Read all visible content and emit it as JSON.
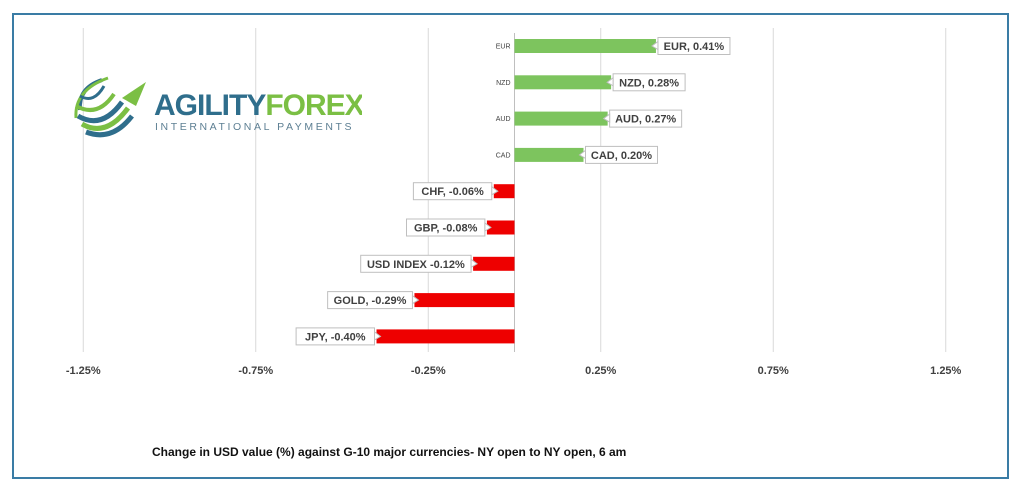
{
  "logo": {
    "brand_part1": "AGILITY",
    "brand_part2": "FOREX",
    "tagline": "INTERNATIONAL PAYMENTS",
    "colors": {
      "teal": "#2f6e8c",
      "green": "#7bbf44"
    }
  },
  "caption": "Change in  USD value (%)  against  G-10 major currencies- NY open to NY open, 6 am",
  "chart_data": {
    "type": "bar",
    "orientation": "horizontal",
    "categories": [
      "EUR",
      "NZD",
      "AUD",
      "CAD",
      "CHF",
      "GBP",
      "USD INDEX",
      "GOLD",
      "JPY"
    ],
    "category_labels_shown": [
      "EUR",
      "NZD",
      "AUD",
      "CAD"
    ],
    "values": [
      0.41,
      0.28,
      0.27,
      0.2,
      -0.06,
      -0.08,
      -0.12,
      -0.29,
      -0.4
    ],
    "data_labels": [
      "EUR, 0.41%",
      "NZD, 0.28%",
      "AUD, 0.27%",
      "CAD, 0.20%",
      "CHF, -0.06%",
      "GBP, -0.08%",
      "USD INDEX -0.12%",
      "GOLD, -0.29%",
      "JPY, -0.40%"
    ],
    "x_ticks": [
      -1.25,
      -0.75,
      -0.25,
      0.25,
      0.75,
      1.25
    ],
    "x_tick_labels": [
      "-1.25%",
      "-0.75%",
      "-0.25%",
      "0.25%",
      "0.75%",
      "1.25%"
    ],
    "xlim": [
      -1.5,
      1.5
    ],
    "grid": true,
    "colors": {
      "positive": "#7dc45e",
      "negative": "#ee0000",
      "grid": "#d9d9d9"
    }
  }
}
